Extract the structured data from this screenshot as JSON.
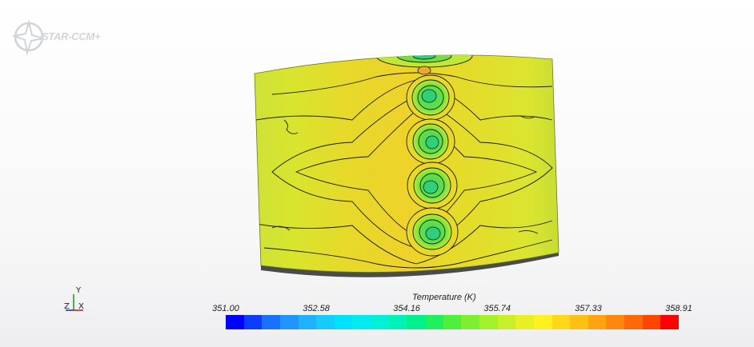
{
  "app": {
    "logo_text": "STAR-CCM+"
  },
  "triad": {
    "y": "Y",
    "z": "Z",
    "x": "X"
  },
  "legend": {
    "title": "Temperature (K)",
    "ticks": [
      "351.00",
      "352.58",
      "354.16",
      "355.74",
      "357.33",
      "358.91"
    ],
    "min": 351.0,
    "max": 358.91,
    "colors": [
      "#0000ff",
      "#0b3cff",
      "#1a70ff",
      "#1f95ff",
      "#1fb2ff",
      "#14ccff",
      "#00e0ff",
      "#00eaf0",
      "#00f0d8",
      "#00f2b8",
      "#00f08c",
      "#1ef060",
      "#4ef03c",
      "#7cf030",
      "#a4f02a",
      "#c8f028",
      "#e8f024",
      "#fff020",
      "#ffd81a",
      "#ffc014",
      "#ffa410",
      "#ff880c",
      "#ff6808",
      "#ff4404",
      "#ff0000"
    ]
  },
  "field": {
    "surface_base": "#dde62c",
    "center_band": "#ecd62a",
    "hot_spots": "#38d85a"
  }
}
